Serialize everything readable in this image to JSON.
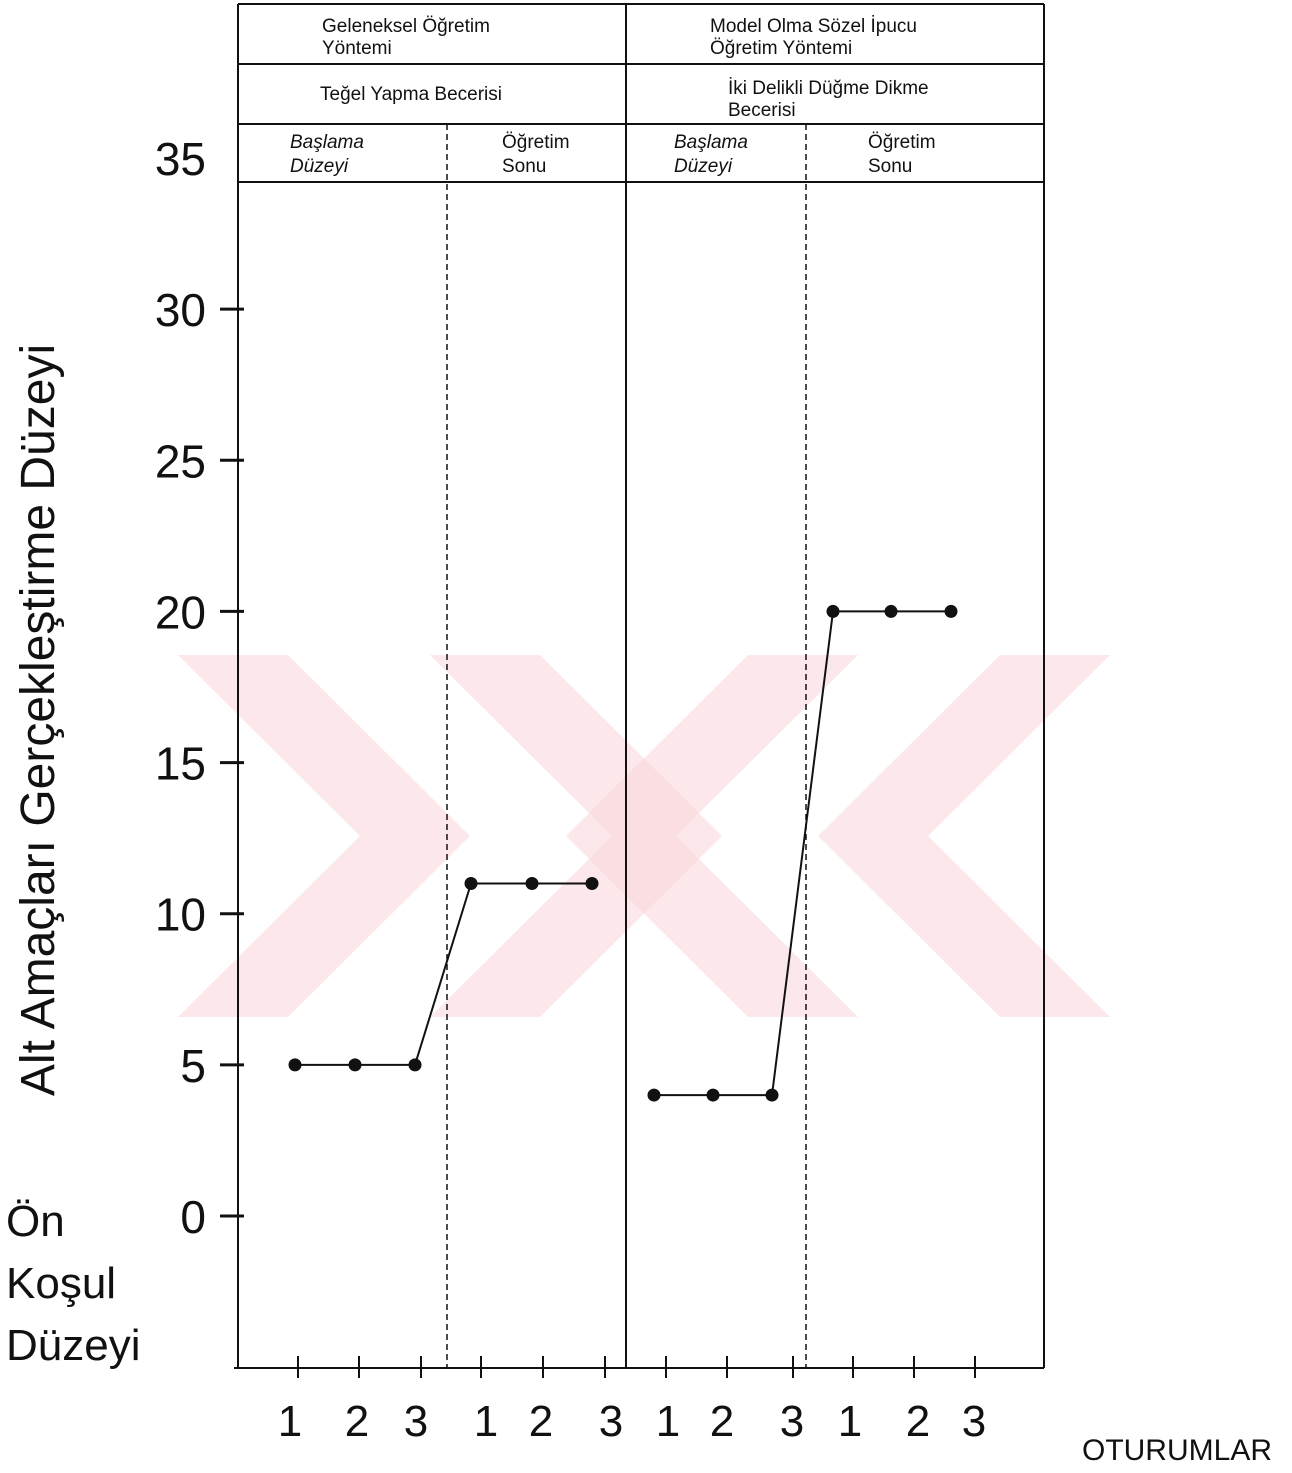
{
  "chart_data": {
    "type": "line",
    "title": "",
    "ylabel": "Alt Amaçları Gerçekleştirme Düzeyi",
    "xlabel": "OTURUMLAR",
    "prereq_label_lines": [
      "Ön",
      "Koşul",
      "Düzeyi"
    ],
    "ylim": [
      0,
      35
    ],
    "yticks": [
      0,
      5,
      10,
      15,
      20,
      25,
      30,
      35
    ],
    "grid": false,
    "panels": [
      {
        "method_lines": [
          "Geleneksel Öğretim",
          "Yöntemi"
        ],
        "skill_lines": [
          "Teğel Yapma Becerisi"
        ],
        "phases": [
          {
            "label_lines": [
              "Başlama",
              "Düzeyi"
            ],
            "sessions": [
              "1",
              "2",
              "3"
            ],
            "values": [
              5,
              5,
              5
            ]
          },
          {
            "label_lines": [
              "Öğretim",
              "Sonu"
            ],
            "sessions": [
              "1",
              "2",
              "3"
            ],
            "values": [
              11,
              11,
              11
            ]
          }
        ]
      },
      {
        "method_lines": [
          "Model Olma Sözel  İpucu",
          "Öğretim Yöntemi"
        ],
        "skill_lines": [
          "İki Delikli Düğme Dikme",
          "Becerisi"
        ],
        "phases": [
          {
            "label_lines": [
              "Başlama",
              "Düzeyi"
            ],
            "sessions": [
              "1",
              "2",
              "3"
            ],
            "values": [
              4,
              4,
              4
            ]
          },
          {
            "label_lines": [
              "Öğretim",
              "Sonu"
            ],
            "sessions": [
              "1",
              "2",
              "3"
            ],
            "values": [
              20,
              20,
              20
            ]
          }
        ]
      }
    ]
  }
}
